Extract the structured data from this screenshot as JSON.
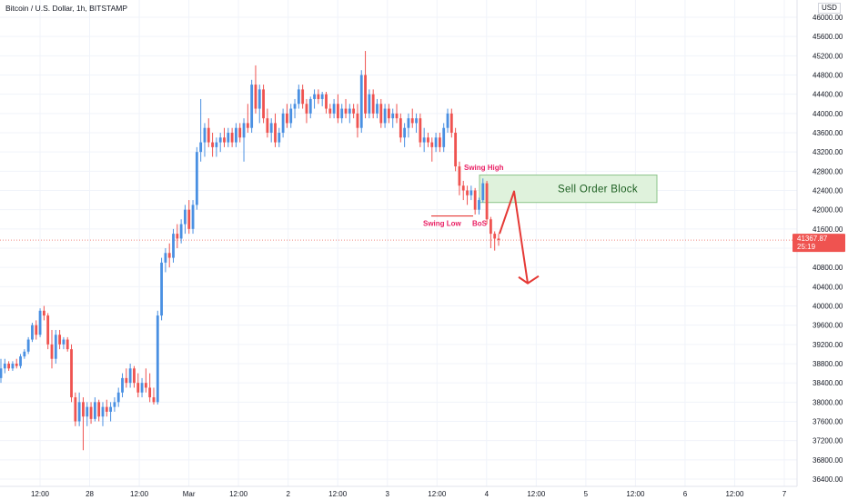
{
  "symbol_title": "Bitcoin / U.S. Dollar, 1h, BITSTAMP",
  "currency": "USD",
  "last_price": "41367.87",
  "countdown": "25:19",
  "colors": {
    "up": "#4a90e2",
    "down": "#ef5350",
    "zone_fill": "#dff2dc",
    "zone_border": "#8bc48a",
    "arrow": "#e53935",
    "annotation": "#e91e63",
    "price_line": "#f28b82"
  },
  "annotations": {
    "swing_high": "Swing High",
    "swing_low": "Swing Low",
    "bos": "BoS",
    "sell_order_block": "Sell Order Block"
  },
  "chart_data": {
    "type": "candlestick",
    "title": "Bitcoin / U.S. Dollar, 1h, BITSTAMP",
    "ylim": [
      36200,
      46200
    ],
    "y_ticks": [
      36400,
      36800,
      37200,
      37600,
      38000,
      38400,
      38800,
      39200,
      39600,
      40000,
      40400,
      40800,
      41200,
      41600,
      42000,
      42400,
      42800,
      43200,
      43600,
      44000,
      44400,
      44800,
      45200,
      45600,
      46000
    ],
    "y_tick_labels": [
      "36400.00",
      "36800.00",
      "37200.00",
      "37600.00",
      "38000.00",
      "38400.00",
      "38800.00",
      "39200.00",
      "39600.00",
      "40000.00",
      "40400.00",
      "40800.00",
      "41200.00",
      "41600.00",
      "42000.00",
      "42400.00",
      "42800.00",
      "43200.00",
      "43600.00",
      "44000.00",
      "44400.00",
      "44800.00",
      "45200.00",
      "45600.00",
      "46000.00"
    ],
    "x_tick_labels": [
      "12:00",
      "28",
      "12:00",
      "Mar",
      "12:00",
      "2",
      "12:00",
      "3",
      "12:00",
      "4",
      "12:00",
      "5",
      "12:00",
      "6",
      "12:00",
      "7"
    ],
    "x_tick_hours": [
      12,
      24,
      36,
      48,
      60,
      72,
      84,
      96,
      108,
      120,
      132,
      144,
      156,
      168,
      180,
      192
    ],
    "x_hour_range": [
      7.5,
      204.8
    ],
    "candles": [
      {
        "o": 38500,
        "h": 38900,
        "l": 38400,
        "c": 38700
      },
      {
        "o": 38700,
        "h": 38900,
        "l": 38600,
        "c": 38800
      },
      {
        "o": 38800,
        "h": 38850,
        "l": 38650,
        "c": 38700
      },
      {
        "o": 38700,
        "h": 38850,
        "l": 38650,
        "c": 38800
      },
      {
        "o": 38800,
        "h": 38900,
        "l": 38700,
        "c": 38750
      },
      {
        "o": 38750,
        "h": 39000,
        "l": 38700,
        "c": 38950
      },
      {
        "o": 38950,
        "h": 39100,
        "l": 38900,
        "c": 39050
      },
      {
        "o": 39050,
        "h": 39350,
        "l": 39000,
        "c": 39300
      },
      {
        "o": 39300,
        "h": 39650,
        "l": 39250,
        "c": 39600
      },
      {
        "o": 39600,
        "h": 39700,
        "l": 39300,
        "c": 39400
      },
      {
        "o": 39400,
        "h": 39950,
        "l": 39350,
        "c": 39900
      },
      {
        "o": 39900,
        "h": 40000,
        "l": 39700,
        "c": 39800
      },
      {
        "o": 39800,
        "h": 39850,
        "l": 39100,
        "c": 39200
      },
      {
        "o": 39200,
        "h": 39500,
        "l": 38700,
        "c": 38900
      },
      {
        "o": 38900,
        "h": 39500,
        "l": 38800,
        "c": 39400
      },
      {
        "o": 39400,
        "h": 39500,
        "l": 39100,
        "c": 39200
      },
      {
        "o": 39200,
        "h": 39350,
        "l": 39100,
        "c": 39300
      },
      {
        "o": 39300,
        "h": 39350,
        "l": 39050,
        "c": 39100
      },
      {
        "o": 39100,
        "h": 39200,
        "l": 38000,
        "c": 38100
      },
      {
        "o": 38100,
        "h": 38200,
        "l": 37500,
        "c": 37600
      },
      {
        "o": 37600,
        "h": 38200,
        "l": 37500,
        "c": 38000
      },
      {
        "o": 38000,
        "h": 38100,
        "l": 37000,
        "c": 37700
      },
      {
        "o": 37700,
        "h": 38000,
        "l": 37500,
        "c": 37900
      },
      {
        "o": 37900,
        "h": 38000,
        "l": 37550,
        "c": 37650
      },
      {
        "o": 37650,
        "h": 38100,
        "l": 37600,
        "c": 38000
      },
      {
        "o": 38000,
        "h": 38050,
        "l": 37600,
        "c": 37700
      },
      {
        "o": 37700,
        "h": 38000,
        "l": 37500,
        "c": 37900
      },
      {
        "o": 37900,
        "h": 38050,
        "l": 37700,
        "c": 37800
      },
      {
        "o": 37800,
        "h": 38000,
        "l": 37600,
        "c": 37900
      },
      {
        "o": 37900,
        "h": 38100,
        "l": 37800,
        "c": 38000
      },
      {
        "o": 38000,
        "h": 38300,
        "l": 37900,
        "c": 38200
      },
      {
        "o": 38200,
        "h": 38600,
        "l": 38100,
        "c": 38500
      },
      {
        "o": 38500,
        "h": 38700,
        "l": 38300,
        "c": 38400
      },
      {
        "o": 38400,
        "h": 38800,
        "l": 38300,
        "c": 38700
      },
      {
        "o": 38700,
        "h": 38750,
        "l": 38300,
        "c": 38400
      },
      {
        "o": 38400,
        "h": 38600,
        "l": 38100,
        "c": 38200
      },
      {
        "o": 38200,
        "h": 38500,
        "l": 38100,
        "c": 38400
      },
      {
        "o": 38400,
        "h": 38700,
        "l": 38200,
        "c": 38300
      },
      {
        "o": 38300,
        "h": 38600,
        "l": 38000,
        "c": 38100
      },
      {
        "o": 38100,
        "h": 38300,
        "l": 37950,
        "c": 38000
      },
      {
        "o": 38000,
        "h": 39900,
        "l": 37950,
        "c": 39800
      },
      {
        "o": 39800,
        "h": 41000,
        "l": 39700,
        "c": 40900
      },
      {
        "o": 40900,
        "h": 41200,
        "l": 40700,
        "c": 41100
      },
      {
        "o": 41100,
        "h": 41300,
        "l": 40800,
        "c": 41000
      },
      {
        "o": 41000,
        "h": 41600,
        "l": 40900,
        "c": 41500
      },
      {
        "o": 41500,
        "h": 41700,
        "l": 41200,
        "c": 41400
      },
      {
        "o": 41400,
        "h": 41800,
        "l": 41300,
        "c": 41700
      },
      {
        "o": 41700,
        "h": 42100,
        "l": 41500,
        "c": 42000
      },
      {
        "o": 42000,
        "h": 42200,
        "l": 41500,
        "c": 41600
      },
      {
        "o": 41600,
        "h": 42200,
        "l": 41500,
        "c": 42100
      },
      {
        "o": 42100,
        "h": 43300,
        "l": 42000,
        "c": 43200
      },
      {
        "o": 43200,
        "h": 44300,
        "l": 43000,
        "c": 43400
      },
      {
        "o": 43400,
        "h": 43800,
        "l": 43100,
        "c": 43700
      },
      {
        "o": 43700,
        "h": 43900,
        "l": 43300,
        "c": 43400
      },
      {
        "o": 43400,
        "h": 43600,
        "l": 43100,
        "c": 43300
      },
      {
        "o": 43300,
        "h": 43500,
        "l": 43100,
        "c": 43400
      },
      {
        "o": 43400,
        "h": 43600,
        "l": 43200,
        "c": 43500
      },
      {
        "o": 43500,
        "h": 43700,
        "l": 43300,
        "c": 43400
      },
      {
        "o": 43400,
        "h": 43700,
        "l": 43300,
        "c": 43600
      },
      {
        "o": 43600,
        "h": 43700,
        "l": 43300,
        "c": 43400
      },
      {
        "o": 43400,
        "h": 43800,
        "l": 43300,
        "c": 43700
      },
      {
        "o": 43700,
        "h": 43800,
        "l": 43400,
        "c": 43500
      },
      {
        "o": 43500,
        "h": 43900,
        "l": 43000,
        "c": 43800
      },
      {
        "o": 43800,
        "h": 44200,
        "l": 43600,
        "c": 43700
      },
      {
        "o": 43700,
        "h": 44700,
        "l": 43600,
        "c": 44600
      },
      {
        "o": 44600,
        "h": 45000,
        "l": 44000,
        "c": 44100
      },
      {
        "o": 44100,
        "h": 44600,
        "l": 43800,
        "c": 44500
      },
      {
        "o": 44500,
        "h": 44600,
        "l": 43800,
        "c": 43900
      },
      {
        "o": 43900,
        "h": 44100,
        "l": 43500,
        "c": 43600
      },
      {
        "o": 43600,
        "h": 43900,
        "l": 43400,
        "c": 43800
      },
      {
        "o": 43800,
        "h": 44000,
        "l": 43300,
        "c": 43400
      },
      {
        "o": 43400,
        "h": 43700,
        "l": 43300,
        "c": 43600
      },
      {
        "o": 43600,
        "h": 44100,
        "l": 43500,
        "c": 44000
      },
      {
        "o": 44000,
        "h": 44200,
        "l": 43700,
        "c": 43800
      },
      {
        "o": 43800,
        "h": 44200,
        "l": 43700,
        "c": 44100
      },
      {
        "o": 44100,
        "h": 44300,
        "l": 43900,
        "c": 44200
      },
      {
        "o": 44200,
        "h": 44600,
        "l": 44100,
        "c": 44500
      },
      {
        "o": 44500,
        "h": 44600,
        "l": 44100,
        "c": 44200
      },
      {
        "o": 44200,
        "h": 44300,
        "l": 43800,
        "c": 44000
      },
      {
        "o": 44000,
        "h": 44350,
        "l": 43900,
        "c": 44300
      },
      {
        "o": 44300,
        "h": 44500,
        "l": 44100,
        "c": 44400
      },
      {
        "o": 44400,
        "h": 44500,
        "l": 44200,
        "c": 44300
      },
      {
        "o": 44300,
        "h": 44450,
        "l": 44150,
        "c": 44400
      },
      {
        "o": 44400,
        "h": 44450,
        "l": 44000,
        "c": 44100
      },
      {
        "o": 44100,
        "h": 44200,
        "l": 43900,
        "c": 44000
      },
      {
        "o": 44000,
        "h": 44300,
        "l": 43900,
        "c": 44200
      },
      {
        "o": 44200,
        "h": 44400,
        "l": 43800,
        "c": 43900
      },
      {
        "o": 43900,
        "h": 44200,
        "l": 43800,
        "c": 44100
      },
      {
        "o": 44100,
        "h": 44300,
        "l": 43900,
        "c": 44000
      },
      {
        "o": 44000,
        "h": 44200,
        "l": 43800,
        "c": 44100
      },
      {
        "o": 44100,
        "h": 44200,
        "l": 43900,
        "c": 44000
      },
      {
        "o": 44000,
        "h": 44200,
        "l": 43500,
        "c": 43700
      },
      {
        "o": 43700,
        "h": 44900,
        "l": 43600,
        "c": 44800
      },
      {
        "o": 44800,
        "h": 45300,
        "l": 43900,
        "c": 44000
      },
      {
        "o": 44000,
        "h": 44500,
        "l": 43900,
        "c": 44400
      },
      {
        "o": 44400,
        "h": 44500,
        "l": 43900,
        "c": 44000
      },
      {
        "o": 44000,
        "h": 44300,
        "l": 43900,
        "c": 44200
      },
      {
        "o": 44200,
        "h": 44300,
        "l": 43700,
        "c": 43800
      },
      {
        "o": 43800,
        "h": 44200,
        "l": 43700,
        "c": 44100
      },
      {
        "o": 44100,
        "h": 44200,
        "l": 43800,
        "c": 43900
      },
      {
        "o": 43900,
        "h": 44100,
        "l": 43700,
        "c": 44000
      },
      {
        "o": 44000,
        "h": 44200,
        "l": 43800,
        "c": 43900
      },
      {
        "o": 43900,
        "h": 44000,
        "l": 43400,
        "c": 43500
      },
      {
        "o": 43500,
        "h": 43800,
        "l": 43300,
        "c": 43700
      },
      {
        "o": 43700,
        "h": 44000,
        "l": 43500,
        "c": 43900
      },
      {
        "o": 43900,
        "h": 44100,
        "l": 43700,
        "c": 43800
      },
      {
        "o": 43800,
        "h": 44000,
        "l": 43600,
        "c": 43900
      },
      {
        "o": 43900,
        "h": 44000,
        "l": 43300,
        "c": 43400
      },
      {
        "o": 43400,
        "h": 43700,
        "l": 43200,
        "c": 43500
      },
      {
        "o": 43500,
        "h": 43600,
        "l": 43300,
        "c": 43400
      },
      {
        "o": 43400,
        "h": 43500,
        "l": 43000,
        "c": 43300
      },
      {
        "o": 43300,
        "h": 43600,
        "l": 43200,
        "c": 43500
      },
      {
        "o": 43500,
        "h": 43600,
        "l": 43200,
        "c": 43300
      },
      {
        "o": 43300,
        "h": 43800,
        "l": 43200,
        "c": 43700
      },
      {
        "o": 43700,
        "h": 44100,
        "l": 43600,
        "c": 44000
      },
      {
        "o": 44000,
        "h": 44100,
        "l": 43500,
        "c": 43600
      },
      {
        "o": 43600,
        "h": 43700,
        "l": 42800,
        "c": 42900
      },
      {
        "o": 42900,
        "h": 43000,
        "l": 42300,
        "c": 42500
      },
      {
        "o": 42500,
        "h": 42600,
        "l": 42200,
        "c": 42400
      },
      {
        "o": 42400,
        "h": 42500,
        "l": 42100,
        "c": 42300
      },
      {
        "o": 42300,
        "h": 42500,
        "l": 42200,
        "c": 42400
      },
      {
        "o": 42400,
        "h": 42450,
        "l": 41900,
        "c": 42000
      },
      {
        "o": 42000,
        "h": 42250,
        "l": 41900,
        "c": 42200
      },
      {
        "o": 42200,
        "h": 42650,
        "l": 42150,
        "c": 42550
      },
      {
        "o": 42550,
        "h": 42600,
        "l": 41700,
        "c": 41800
      },
      {
        "o": 41800,
        "h": 41850,
        "l": 41200,
        "c": 41500
      },
      {
        "o": 41500,
        "h": 41550,
        "l": 41150,
        "c": 41400
      },
      {
        "o": 41400,
        "h": 41500,
        "l": 41250,
        "c": 41370
      }
    ],
    "x_start_hour": 0
  }
}
